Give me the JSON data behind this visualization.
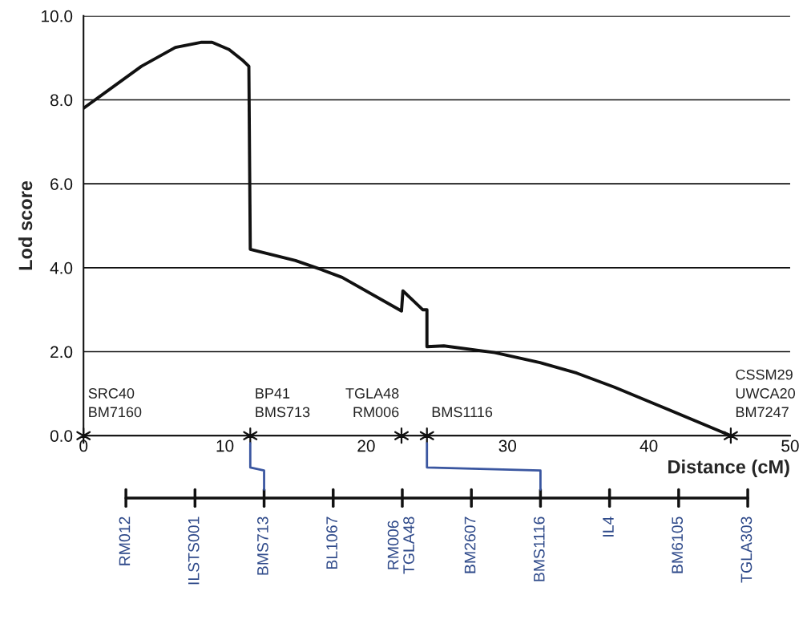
{
  "chart_data": [
    {
      "type": "line",
      "xlabel": "Distance (cM)",
      "ylabel": "Lod score",
      "xlim": [
        0,
        50
      ],
      "xticks": [
        0,
        10,
        20,
        30,
        40,
        50
      ],
      "ylim": [
        0,
        10
      ],
      "yticks": [
        {
          "value": 0,
          "label": "0.0"
        },
        {
          "value": 2,
          "label": "2.0"
        },
        {
          "value": 4,
          "label": "4.0"
        },
        {
          "value": 6,
          "label": "6.0"
        },
        {
          "value": 8,
          "label": "8.0"
        },
        {
          "value": 10,
          "label": "10.0"
        }
      ],
      "grid": "y",
      "legend": false,
      "series": [
        {
          "type": "line",
          "color": "#111111",
          "marker": "none",
          "line_style": "solid",
          "x": [
            0,
            4.1,
            6.5,
            8.3,
            9.1,
            10.3,
            11.3,
            11.7,
            11.8,
            15.0,
            16.8,
            18.3,
            22.5,
            22.6,
            24.0,
            24.3,
            24.3,
            25.5,
            29.1,
            32.3,
            34.9,
            37.6,
            40.4,
            45.8
          ],
          "values": [
            7.8,
            8.8,
            9.25,
            9.37,
            9.37,
            9.2,
            8.93,
            8.8,
            4.44,
            4.17,
            3.96,
            3.77,
            2.97,
            3.45,
            3.0,
            3.0,
            2.12,
            2.14,
            1.98,
            1.74,
            1.49,
            1.15,
            0.76,
            0
          ]
        },
        {
          "type": "scatter",
          "color": "#111111",
          "marker": "cross",
          "x": [
            0,
            11.8,
            22.5,
            24.3,
            45.8
          ],
          "values": [
            0,
            0,
            0,
            0,
            0
          ]
        }
      ],
      "annotations": [
        {
          "text": "SRC40\nBM7160",
          "x": 0,
          "y": 0
        },
        {
          "text": "BP41\nBMS713",
          "x": 11.8,
          "y": 0
        },
        {
          "text": "TGLA48\nRM006",
          "x": 22.5,
          "y": 0
        },
        {
          "text": "BMS1116",
          "x": 24.3,
          "y": 0
        },
        {
          "text": "CSSM29\nUWCA20\nBM7247",
          "x": 45.8,
          "y": 0
        }
      ]
    },
    {
      "type": "other",
      "annotations": [
        "RM012",
        "ILSTS001",
        "BMS713",
        "BL1067",
        "RM006\nTGLA48",
        "BM2607",
        "BMS1116",
        "IL4",
        "BM6105",
        "TGLA303"
      ]
    }
  ]
}
